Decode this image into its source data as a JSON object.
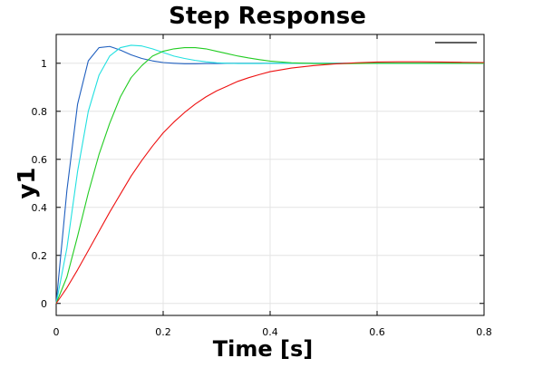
{
  "chart_data": {
    "type": "line",
    "title": "Step Response",
    "xlabel": "Time [s]",
    "ylabel": "y1",
    "xlim": [
      0,
      0.8
    ],
    "ylim": [
      -0.05,
      1.12
    ],
    "xticks": [
      "0",
      "0.2",
      "0.4",
      "0.6",
      "0.8"
    ],
    "yticks": [
      "0",
      "0.2",
      "0.4",
      "0.6",
      "0.8",
      "1"
    ],
    "grid": true,
    "legend": {
      "placement": "top-right",
      "entries": [
        ""
      ]
    },
    "x": [
      0,
      0.02,
      0.04,
      0.06,
      0.08,
      0.1,
      0.12,
      0.14,
      0.16,
      0.18,
      0.2,
      0.22,
      0.24,
      0.26,
      0.28,
      0.3,
      0.32,
      0.34,
      0.36,
      0.38,
      0.4,
      0.44,
      0.48,
      0.52,
      0.56,
      0.6,
      0.64,
      0.68,
      0.72,
      0.76,
      0.8
    ],
    "series": [
      {
        "color": "#1f5fbf",
        "values": [
          0,
          0.47,
          0.83,
          1.01,
          1.065,
          1.07,
          1.055,
          1.035,
          1.02,
          1.01,
          1.003,
          1.0,
          0.998,
          0.998,
          0.999,
          0.999,
          1.0,
          1.0,
          1.0,
          1.0,
          1.0,
          1.0,
          1.0,
          1.0,
          1.0,
          1.0,
          1.0,
          1.0,
          1.0,
          1.0,
          1.0
        ]
      },
      {
        "color": "#22e0e0",
        "values": [
          0,
          0.23,
          0.55,
          0.8,
          0.95,
          1.03,
          1.065,
          1.075,
          1.072,
          1.06,
          1.045,
          1.03,
          1.02,
          1.012,
          1.006,
          1.002,
          1.0,
          0.999,
          0.999,
          0.999,
          1.0,
          1.0,
          1.0,
          1.0,
          1.0,
          1.0,
          1.0,
          1.0,
          1.0,
          1.0,
          1.0
        ]
      },
      {
        "color": "#22cc22",
        "values": [
          0,
          0.11,
          0.28,
          0.46,
          0.62,
          0.75,
          0.86,
          0.94,
          0.99,
          1.03,
          1.05,
          1.06,
          1.065,
          1.065,
          1.06,
          1.05,
          1.04,
          1.03,
          1.022,
          1.015,
          1.009,
          1.002,
          0.999,
          0.998,
          0.999,
          1.0,
          1.0,
          1.0,
          1.0,
          1.0,
          1.0
        ]
      },
      {
        "color": "#ee1111",
        "values": [
          0,
          0.065,
          0.14,
          0.22,
          0.3,
          0.38,
          0.455,
          0.53,
          0.595,
          0.655,
          0.71,
          0.755,
          0.795,
          0.83,
          0.86,
          0.885,
          0.905,
          0.925,
          0.94,
          0.953,
          0.965,
          0.98,
          0.99,
          0.997,
          1.002,
          1.005,
          1.006,
          1.006,
          1.005,
          1.004,
          1.003
        ]
      }
    ]
  }
}
